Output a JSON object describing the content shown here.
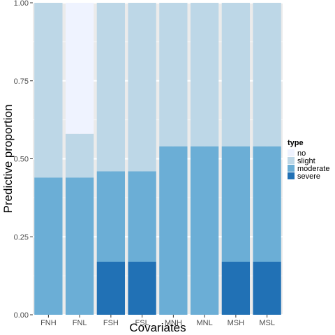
{
  "chart_data": {
    "type": "bar",
    "stacked": true,
    "xlabel": "Covariates",
    "ylabel": "Predictive proportion",
    "ylim": [
      0,
      1
    ],
    "yticks": [
      "0.00",
      "0.25",
      "0.50",
      "0.75",
      "1.00"
    ],
    "ytick_values": [
      0,
      0.25,
      0.5,
      0.75,
      1.0
    ],
    "categories": [
      "FNH",
      "FNL",
      "FSH",
      "FSL",
      "MNH",
      "MNL",
      "MSH",
      "MSL"
    ],
    "series": [
      {
        "name": "severe",
        "color": "#2171b5",
        "values": [
          0,
          0,
          0.17,
          0.17,
          0,
          0,
          0.17,
          0.17
        ]
      },
      {
        "name": "moderate",
        "color": "#6baed6",
        "values": [
          0.44,
          0.44,
          0.29,
          0.29,
          0.54,
          0.54,
          0.37,
          0.37
        ]
      },
      {
        "name": "slight",
        "color": "#bdd7e7",
        "values": [
          0.56,
          0.14,
          0.54,
          0.54,
          0.46,
          0.46,
          0.46,
          0.46
        ]
      },
      {
        "name": "no",
        "color": "#eff3ff",
        "values": [
          0,
          0.42,
          0,
          0,
          0,
          0,
          0,
          0
        ]
      }
    ],
    "legend": {
      "title": "type",
      "position": "right",
      "order": [
        "no",
        "slight",
        "moderate",
        "severe"
      ]
    },
    "panel_background": "#ebebeb",
    "grid": true
  }
}
